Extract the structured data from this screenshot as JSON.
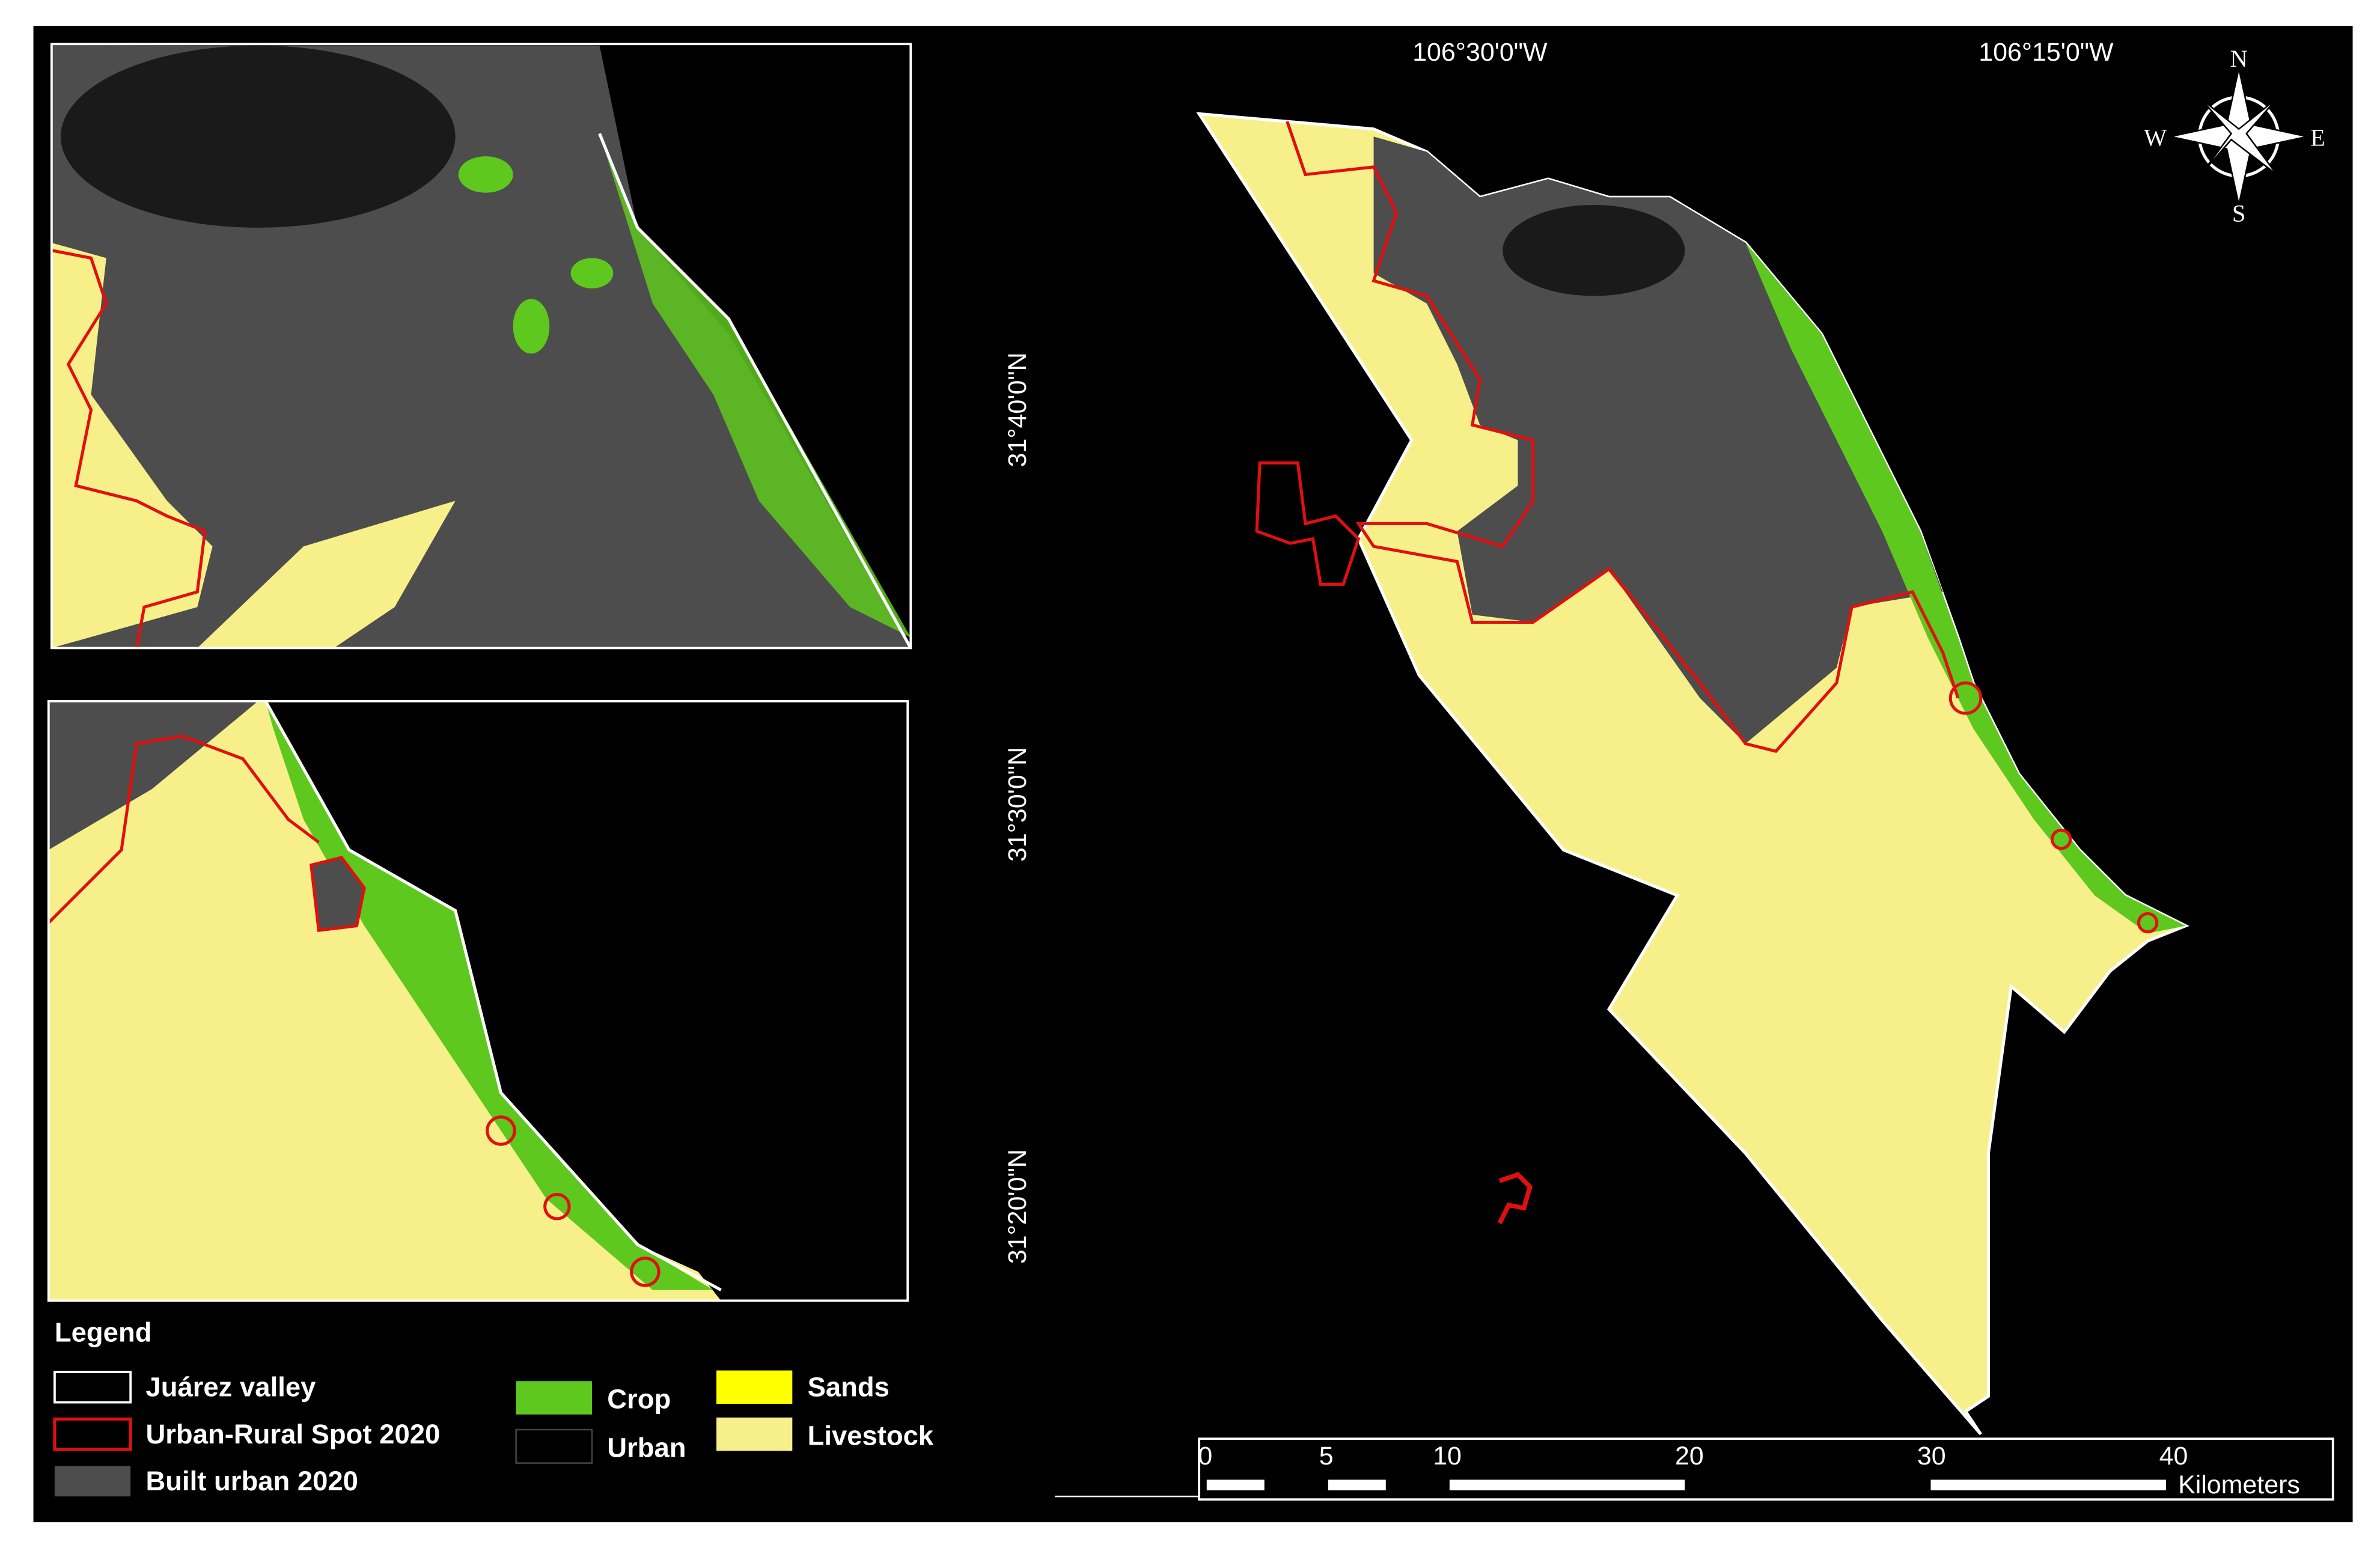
{
  "map": {
    "lon_labels": [
      "106°30'0\"W",
      "106°15'0\"W"
    ],
    "lat_labels": [
      "31°40'0\"N",
      "31°30'0\"N",
      "31°20'0\"N"
    ]
  },
  "compass": {
    "n": "N",
    "e": "E",
    "s": "S",
    "w": "W"
  },
  "legend": {
    "title": "Legend",
    "items": [
      "Juárez valley",
      "Urban-Rural Spot 2020",
      "Built urban  2020",
      "Crop",
      "Urban",
      "Sands",
      "Livestock"
    ]
  },
  "scale_bar": {
    "ticks": [
      0,
      5,
      10,
      20,
      30,
      40
    ],
    "unit": "Kilometers"
  }
}
